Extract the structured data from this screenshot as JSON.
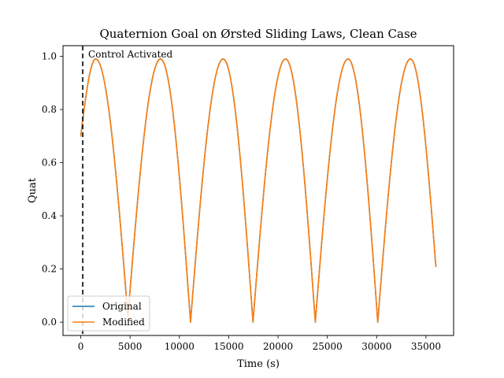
{
  "chart_data": {
    "type": "line",
    "title": "Quaternion Goal on Ørsted Sliding Laws, Clean Case",
    "xlabel": "Time (s)",
    "ylabel": "Quat",
    "xlim": [
      -1800,
      37800
    ],
    "ylim": [
      -0.05,
      1.04
    ],
    "xticks": [
      0,
      5000,
      10000,
      15000,
      20000,
      25000,
      30000,
      35000
    ],
    "yticks": [
      0.0,
      0.2,
      0.4,
      0.6,
      0.8,
      1.0
    ],
    "grid": false,
    "legend": "lower-left",
    "annotation": {
      "text": "Control Activated",
      "x": 200
    },
    "series": [
      {
        "name": "Original",
        "color": "#1f77b4",
        "x": [
          0,
          1520,
          4780,
          8090,
          11130,
          14440,
          17460,
          20770,
          23780,
          27100,
          30110,
          33430,
          36000
        ],
        "y": [
          0.7,
          0.99,
          0.02,
          0.99,
          0.0,
          0.99,
          0.0,
          0.99,
          0.0,
          0.99,
          0.0,
          0.99,
          0.21
        ]
      },
      {
        "name": "Modified",
        "color": "#ff7f0e",
        "x": [
          0,
          1520,
          4780,
          8090,
          11130,
          14440,
          17460,
          20770,
          23780,
          27100,
          30110,
          33430,
          36000
        ],
        "y": [
          0.7,
          0.99,
          0.02,
          0.99,
          0.0,
          0.99,
          0.0,
          0.99,
          0.0,
          0.99,
          0.0,
          0.99,
          0.21
        ]
      }
    ]
  }
}
